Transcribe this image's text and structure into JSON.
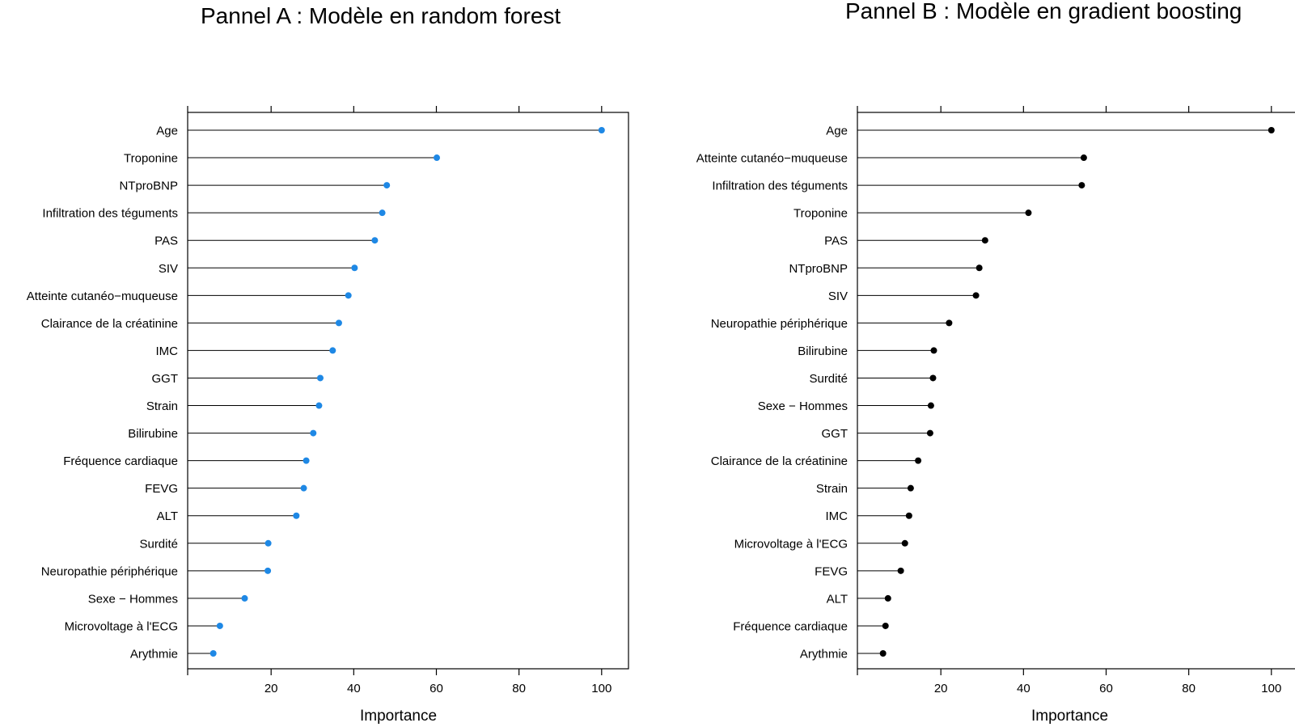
{
  "chart_data": [
    {
      "type": "lollipop",
      "title": "Pannel A : Modèle en random forest",
      "xlabel": "Importance",
      "xlim": [
        -0.2,
        106.5
      ],
      "xticks": [
        20,
        40,
        60,
        80,
        100
      ],
      "point_color": "#1E88E5",
      "categories": [
        "Age",
        "Troponine",
        "NTproBNP",
        "Infiltration des téguments",
        "PAS",
        "SIV",
        "Atteinte cutanéo−muqueuse",
        "Clairance de la créatinine",
        "IMC",
        "GGT",
        "Strain",
        "Bilirubine",
        "Fréquence cardiaque",
        "FEVG",
        "ALT",
        "Surdité",
        "Neuropathie périphérique",
        "Sexe − Hommes",
        "Microvoltage à l'ECG",
        "Arythmie"
      ],
      "values": [
        100,
        60.1,
        48.0,
        46.9,
        45.1,
        40.2,
        38.7,
        36.4,
        34.9,
        31.9,
        31.6,
        30.2,
        28.5,
        27.9,
        26.1,
        19.3,
        19.2,
        13.6,
        7.6,
        6.0
      ]
    },
    {
      "type": "lollipop",
      "title": "Pannel B : Modèle en gradient boosting",
      "xlabel": "Importance",
      "xlim": [
        -0.2,
        106.5
      ],
      "xticks": [
        20,
        40,
        60,
        80,
        100
      ],
      "point_color": "#000000",
      "categories": [
        "Age",
        "Atteinte cutanéo−muqueuse",
        "Infiltration des téguments",
        "Troponine",
        "PAS",
        "NTproBNP",
        "SIV",
        "Neuropathie périphérique",
        "Bilirubine",
        "Surdité",
        "Sexe − Hommes",
        "GGT",
        "Clairance de la créatinine",
        "Strain",
        "IMC",
        "Microvoltage à l'ECG",
        "FEVG",
        "ALT",
        "Fréquence cardiaque",
        "Arythmie"
      ],
      "values": [
        100,
        54.6,
        54.1,
        41.2,
        30.7,
        29.3,
        28.5,
        22.0,
        18.3,
        18.1,
        17.6,
        17.4,
        14.5,
        12.7,
        12.3,
        11.3,
        10.3,
        7.2,
        6.6,
        6.0
      ]
    }
  ]
}
